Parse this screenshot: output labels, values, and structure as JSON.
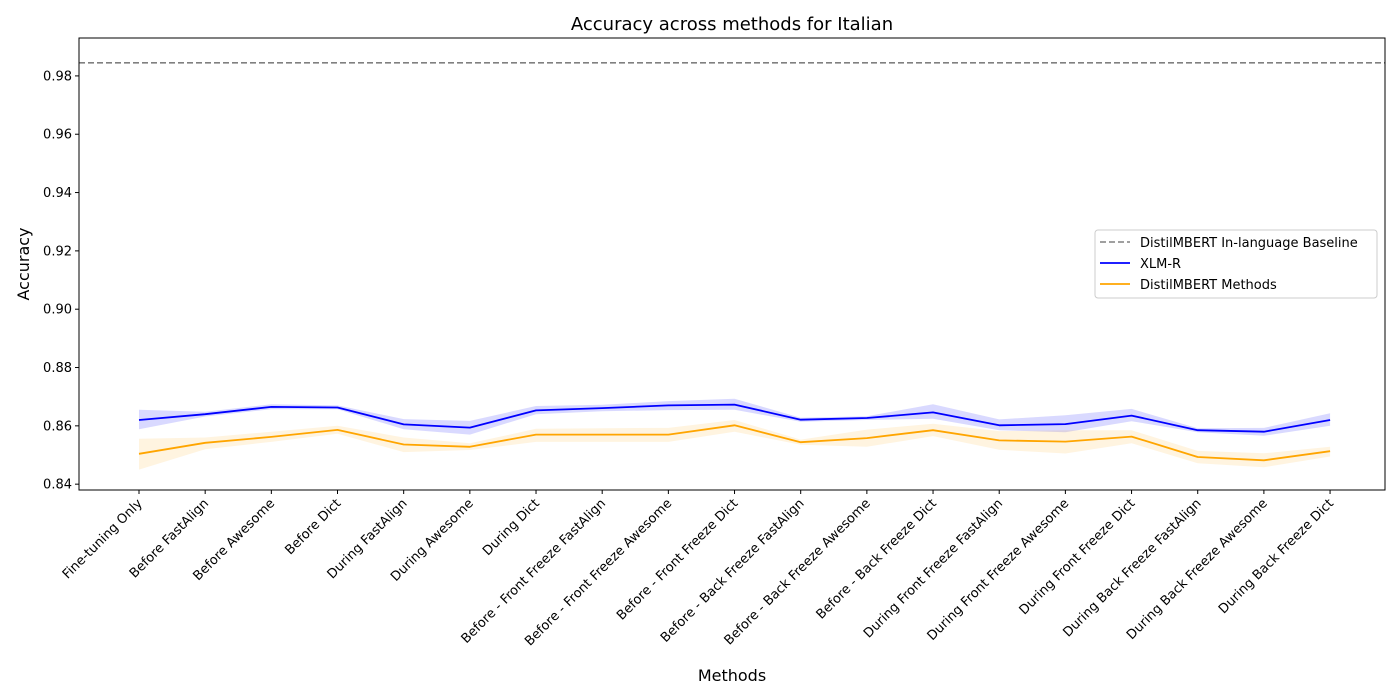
{
  "chart_data": {
    "type": "line",
    "title": "Accuracy across methods for Italian",
    "xlabel": "Methods",
    "ylabel": "Accuracy",
    "ylim": [
      0.838,
      0.993
    ],
    "yticks": [
      0.84,
      0.86,
      0.88,
      0.9,
      0.92,
      0.94,
      0.96,
      0.98
    ],
    "ytick_labels": [
      "0.84",
      "0.86",
      "0.88",
      "0.90",
      "0.92",
      "0.94",
      "0.96",
      "0.98"
    ],
    "grid": false,
    "legend_position": "center-right",
    "categories": [
      "Fine-tuning Only",
      "Before FastAlign",
      "Before Awesome",
      "Before Dict",
      "During FastAlign",
      "During Awesome",
      "During Dict",
      "Before - Front Freeze FastAlign",
      "Before - Front Freeze Awesome",
      "Before - Front Freeze Dict",
      "Before - Back Freeze FastAlign",
      "Before - Back Freeze Awesome",
      "Before - Back Freeze Dict",
      "During Front Freeze FastAlign",
      "During Front Freeze Awesome",
      "During Front Freeze Dict",
      "During Back Freeze FastAlign",
      "During Back Freeze Awesome",
      "During Back Freeze Dict"
    ],
    "baseline": {
      "name": "DistilMBERT In-language Baseline",
      "value": 0.9845,
      "color": "#808080",
      "style": "dashed"
    },
    "series": [
      {
        "name": "XLM-R",
        "color": "#0000ff",
        "values": [
          0.862,
          0.864,
          0.8665,
          0.8663,
          0.8605,
          0.8594,
          0.8653,
          0.8661,
          0.867,
          0.8673,
          0.8621,
          0.8627,
          0.8646,
          0.8602,
          0.8606,
          0.8635,
          0.8585,
          0.858,
          0.862
        ],
        "lower": [
          0.8588,
          0.8632,
          0.8657,
          0.8657,
          0.8588,
          0.857,
          0.864,
          0.865,
          0.8654,
          0.8655,
          0.8614,
          0.862,
          0.8624,
          0.8585,
          0.8578,
          0.8616,
          0.8578,
          0.8566,
          0.86
        ],
        "upper": [
          0.8655,
          0.8648,
          0.8674,
          0.867,
          0.8623,
          0.8617,
          0.8668,
          0.8672,
          0.8685,
          0.8693,
          0.8628,
          0.8633,
          0.8674,
          0.8622,
          0.8636,
          0.8658,
          0.8592,
          0.8593,
          0.8643
        ]
      },
      {
        "name": "DistilMBERT Methods",
        "color": "#ffa500",
        "values": [
          0.8504,
          0.8542,
          0.8562,
          0.8586,
          0.8536,
          0.8528,
          0.857,
          0.857,
          0.857,
          0.8602,
          0.8544,
          0.8558,
          0.8585,
          0.855,
          0.8546,
          0.8563,
          0.8493,
          0.8482,
          0.8513
        ],
        "lower": [
          0.845,
          0.852,
          0.8545,
          0.8573,
          0.851,
          0.8517,
          0.8545,
          0.8545,
          0.8545,
          0.858,
          0.8535,
          0.8528,
          0.8565,
          0.8518,
          0.8505,
          0.854,
          0.8472,
          0.8458,
          0.8495
        ],
        "upper": [
          0.8556,
          0.856,
          0.858,
          0.86,
          0.856,
          0.854,
          0.859,
          0.8592,
          0.8593,
          0.862,
          0.8553,
          0.8587,
          0.8607,
          0.8582,
          0.8585,
          0.8585,
          0.8514,
          0.8506,
          0.8528
        ]
      }
    ]
  }
}
